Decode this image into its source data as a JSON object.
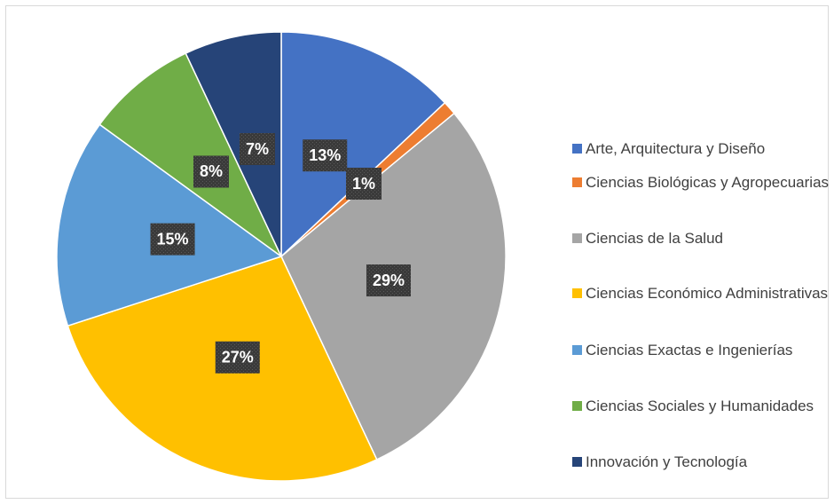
{
  "chart_data": {
    "type": "pie",
    "categories": [
      "Arte, Arquitectura y Diseño",
      "Ciencias Biológicas y Agropecuarias",
      "Ciencias de la Salud",
      "Ciencias Económico Administrativas",
      "Ciencias Exactas e Ingenierías",
      "Ciencias Sociales y Humanidades",
      "Innovación y Tecnología"
    ],
    "values": [
      13,
      1,
      29,
      27,
      15,
      8,
      7
    ],
    "value_labels": [
      "13%",
      "1%",
      "29%",
      "27%",
      "15%",
      "8%",
      "7%"
    ],
    "colors": [
      "#4472c4",
      "#ed7d31",
      "#a5a5a5",
      "#ffc000",
      "#5b9bd5",
      "#70ad47",
      "#264478"
    ],
    "legend": "right"
  }
}
